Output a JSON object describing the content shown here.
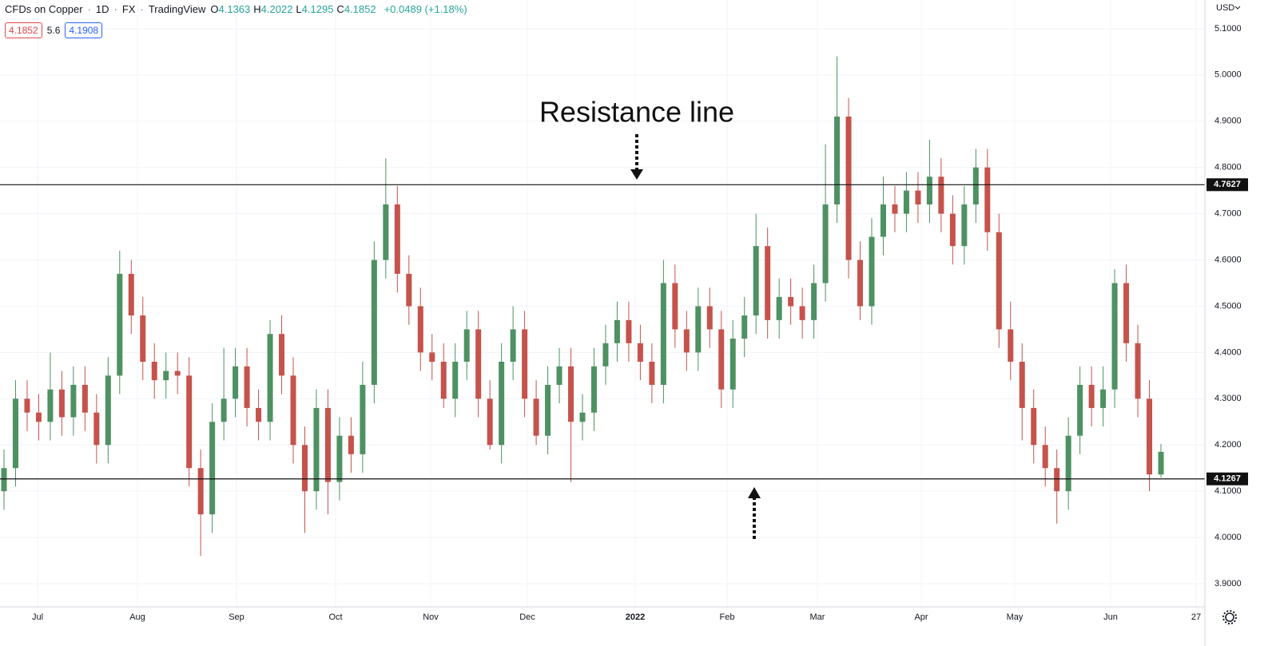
{
  "chart_data": {
    "type": "candlestick",
    "header": {
      "symbol": "CFDs on Copper",
      "interval": "1D",
      "exchange": "FX",
      "source": "TradingView",
      "ohlc": [
        {
          "label": "O",
          "value": "4.1363"
        },
        {
          "label": "H",
          "value": "4.2022"
        },
        {
          "label": "L",
          "value": "4.1295"
        },
        {
          "label": "C",
          "value": "4.1852"
        }
      ],
      "change": "+0.0489 (+1.18%)",
      "bid": "4.1852",
      "spread": "5.6",
      "ask": "4.1908"
    },
    "currency": "USD",
    "annotation": "Resistance line",
    "up_color": "#4e9162",
    "down_color": "#c5534b",
    "grid": true,
    "ylim": [
      3.85,
      5.162
    ],
    "yticks": [
      {
        "value": 3.9,
        "label": "3.9000"
      },
      {
        "value": 4.0,
        "label": "4.0000"
      },
      {
        "value": 4.1,
        "label": "4.1000"
      },
      {
        "value": 4.2,
        "label": "4.2000"
      },
      {
        "value": 4.3,
        "label": "4.3000"
      },
      {
        "value": 4.4,
        "label": "4.4000"
      },
      {
        "value": 4.5,
        "label": "4.5000"
      },
      {
        "value": 4.6,
        "label": "4.6000"
      },
      {
        "value": 4.7,
        "label": "4.7000"
      },
      {
        "value": 4.8,
        "label": "4.8000"
      },
      {
        "value": 4.9,
        "label": "4.9000"
      },
      {
        "value": 5.0,
        "label": "5.0000"
      },
      {
        "value": 5.1,
        "label": "5.1000"
      }
    ],
    "x_labels": [
      "Jul",
      "Aug",
      "Sep",
      "Oct",
      "Nov",
      "Dec",
      "2022",
      "Feb",
      "Mar",
      "Apr",
      "May",
      "Jun",
      "27"
    ],
    "hlines": [
      {
        "value": 4.7627,
        "label": "4.7627"
      },
      {
        "value": 4.1267,
        "label": "4.1267"
      }
    ],
    "open": [
      4.1,
      4.15,
      4.3,
      4.27,
      4.25,
      4.32,
      4.26,
      4.33,
      4.27,
      4.2,
      4.35,
      4.57,
      4.48,
      4.38,
      4.34,
      4.36,
      4.35,
      4.15,
      4.05,
      4.25,
      4.3,
      4.37,
      4.28,
      4.25,
      4.44,
      4.35,
      4.2,
      4.1,
      4.28,
      4.12,
      4.22,
      4.18,
      4.33,
      4.6,
      4.72,
      4.57,
      4.5,
      4.4,
      4.38,
      4.3,
      4.38,
      4.45,
      4.3,
      4.2,
      4.38,
      4.45,
      4.3,
      4.22,
      4.33,
      4.37,
      4.25,
      4.27,
      4.37,
      4.42,
      4.47,
      4.42,
      4.38,
      4.33,
      4.55,
      4.45,
      4.4,
      4.5,
      4.45,
      4.32,
      4.43,
      4.48,
      4.63,
      4.47,
      4.52,
      4.5,
      4.47,
      4.55,
      4.72,
      4.91,
      4.6,
      4.5,
      4.65,
      4.72,
      4.7,
      4.75,
      4.72,
      4.78,
      4.7,
      4.63,
      4.72,
      4.8,
      4.66,
      4.45,
      4.38,
      4.28,
      4.2,
      4.15,
      4.1,
      4.22,
      4.33,
      4.28,
      4.32,
      4.55,
      4.42,
      4.3,
      4.1363
    ],
    "high": [
      4.19,
      4.34,
      4.34,
      4.31,
      4.4,
      4.36,
      4.37,
      4.37,
      4.31,
      4.39,
      4.62,
      4.6,
      4.52,
      4.42,
      4.4,
      4.4,
      4.39,
      4.19,
      4.29,
      4.41,
      4.41,
      4.41,
      4.32,
      4.47,
      4.48,
      4.39,
      4.24,
      4.32,
      4.32,
      4.26,
      4.26,
      4.38,
      4.64,
      4.82,
      4.76,
      4.61,
      4.54,
      4.44,
      4.42,
      4.42,
      4.49,
      4.49,
      4.34,
      4.42,
      4.5,
      4.49,
      4.34,
      4.37,
      4.41,
      4.41,
      4.31,
      4.41,
      4.46,
      4.51,
      4.51,
      4.46,
      4.42,
      4.6,
      4.59,
      4.49,
      4.54,
      4.54,
      4.49,
      4.47,
      4.52,
      4.7,
      4.67,
      4.56,
      4.56,
      4.54,
      4.59,
      4.85,
      5.04,
      4.95,
      4.64,
      4.69,
      4.78,
      4.76,
      4.79,
      4.79,
      4.86,
      4.82,
      4.74,
      4.76,
      4.84,
      4.84,
      4.7,
      4.51,
      4.42,
      4.32,
      4.24,
      4.19,
      4.26,
      4.37,
      4.37,
      4.37,
      4.58,
      4.59,
      4.46,
      4.34,
      4.2022
    ],
    "low": [
      4.06,
      4.11,
      4.23,
      4.21,
      4.21,
      4.22,
      4.22,
      4.23,
      4.16,
      4.16,
      4.31,
      4.44,
      4.34,
      4.3,
      4.3,
      4.31,
      4.11,
      3.96,
      4.01,
      4.21,
      4.26,
      4.24,
      4.21,
      4.21,
      4.31,
      4.16,
      4.01,
      4.06,
      4.05,
      4.08,
      4.14,
      4.14,
      4.29,
      4.56,
      4.53,
      4.46,
      4.36,
      4.34,
      4.28,
      4.26,
      4.34,
      4.26,
      4.19,
      4.16,
      4.34,
      4.26,
      4.2,
      4.18,
      4.29,
      4.12,
      4.21,
      4.23,
      4.33,
      4.38,
      4.38,
      4.34,
      4.29,
      4.29,
      4.41,
      4.36,
      4.36,
      4.41,
      4.28,
      4.28,
      4.39,
      4.44,
      4.43,
      4.43,
      4.46,
      4.43,
      4.43,
      4.51,
      4.68,
      4.56,
      4.47,
      4.46,
      4.61,
      4.66,
      4.66,
      4.68,
      4.68,
      4.66,
      4.59,
      4.59,
      4.68,
      4.62,
      4.41,
      4.34,
      4.21,
      4.16,
      4.11,
      4.03,
      4.06,
      4.18,
      4.24,
      4.24,
      4.28,
      4.38,
      4.26,
      4.1,
      4.1295
    ],
    "close": [
      4.15,
      4.3,
      4.27,
      4.25,
      4.32,
      4.26,
      4.33,
      4.27,
      4.2,
      4.35,
      4.57,
      4.48,
      4.38,
      4.34,
      4.36,
      4.35,
      4.15,
      4.05,
      4.25,
      4.3,
      4.37,
      4.28,
      4.25,
      4.44,
      4.35,
      4.2,
      4.1,
      4.28,
      4.12,
      4.22,
      4.18,
      4.33,
      4.6,
      4.72,
      4.57,
      4.5,
      4.4,
      4.38,
      4.3,
      4.38,
      4.45,
      4.3,
      4.2,
      4.38,
      4.45,
      4.3,
      4.22,
      4.33,
      4.37,
      4.25,
      4.27,
      4.37,
      4.42,
      4.47,
      4.42,
      4.38,
      4.33,
      4.55,
      4.45,
      4.4,
      4.5,
      4.45,
      4.32,
      4.43,
      4.48,
      4.63,
      4.47,
      4.52,
      4.5,
      4.47,
      4.55,
      4.72,
      4.91,
      4.6,
      4.5,
      4.65,
      4.72,
      4.7,
      4.75,
      4.72,
      4.78,
      4.7,
      4.63,
      4.72,
      4.8,
      4.66,
      4.45,
      4.38,
      4.28,
      4.2,
      4.15,
      4.1,
      4.22,
      4.33,
      4.28,
      4.32,
      4.55,
      4.42,
      4.3,
      4.1363,
      4.1852
    ]
  }
}
